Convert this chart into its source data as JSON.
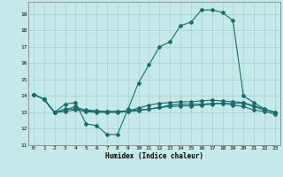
{
  "xlabel": "Humidex (Indice chaleur)",
  "bg_color": "#c5e8e8",
  "grid_color": "#a8d0d0",
  "line_color": "#1a6b6b",
  "xlim": [
    -0.5,
    23.5
  ],
  "ylim": [
    11.0,
    19.75
  ],
  "yticks": [
    11,
    12,
    13,
    14,
    15,
    16,
    17,
    18,
    19
  ],
  "xticks": [
    0,
    1,
    2,
    3,
    4,
    5,
    6,
    7,
    8,
    9,
    10,
    11,
    12,
    13,
    14,
    15,
    16,
    17,
    18,
    19,
    20,
    21,
    22,
    23
  ],
  "line1_x": [
    0,
    1,
    2,
    3,
    4,
    5,
    6,
    7,
    8,
    9,
    10,
    11,
    12,
    13,
    14,
    15,
    16,
    17,
    18,
    19,
    20,
    21,
    22,
    23
  ],
  "line1_y": [
    14.1,
    13.8,
    13.0,
    13.5,
    13.6,
    12.3,
    12.2,
    11.65,
    11.65,
    13.2,
    14.8,
    15.9,
    17.0,
    17.3,
    18.3,
    18.5,
    19.25,
    19.25,
    19.1,
    18.6,
    14.0,
    13.6,
    13.2,
    13.0
  ],
  "line2_x": [
    0,
    1,
    2,
    3,
    4,
    5,
    6,
    7,
    8,
    9,
    10,
    11,
    12,
    13,
    14,
    15,
    16,
    17,
    18,
    19,
    20,
    21,
    22,
    23
  ],
  "line2_y": [
    14.1,
    13.8,
    13.0,
    13.2,
    13.2,
    13.15,
    13.1,
    13.05,
    13.05,
    13.1,
    13.15,
    13.2,
    13.3,
    13.35,
    13.4,
    13.4,
    13.45,
    13.5,
    13.55,
    13.55,
    13.55,
    13.35,
    13.15,
    13.0
  ],
  "line3_x": [
    0,
    1,
    2,
    3,
    4,
    5,
    6,
    7,
    8,
    9,
    10,
    11,
    12,
    13,
    14,
    15,
    16,
    17,
    18,
    19,
    20,
    21,
    22,
    23
  ],
  "line3_y": [
    14.1,
    13.8,
    13.0,
    13.15,
    13.35,
    13.1,
    13.05,
    13.05,
    13.05,
    13.1,
    13.25,
    13.45,
    13.55,
    13.6,
    13.65,
    13.65,
    13.7,
    13.75,
    13.7,
    13.65,
    13.6,
    13.4,
    13.2,
    13.0
  ],
  "line4_x": [
    0,
    1,
    2,
    3,
    4,
    5,
    6,
    7,
    8,
    9,
    10,
    11,
    12,
    13,
    14,
    15,
    16,
    17,
    18,
    19,
    20,
    21,
    22,
    23
  ],
  "line4_y": [
    14.1,
    13.8,
    13.0,
    13.05,
    13.15,
    13.05,
    13.0,
    13.0,
    13.0,
    13.05,
    13.1,
    13.2,
    13.3,
    13.45,
    13.5,
    13.5,
    13.5,
    13.55,
    13.55,
    13.45,
    13.35,
    13.15,
    13.05,
    12.9
  ]
}
